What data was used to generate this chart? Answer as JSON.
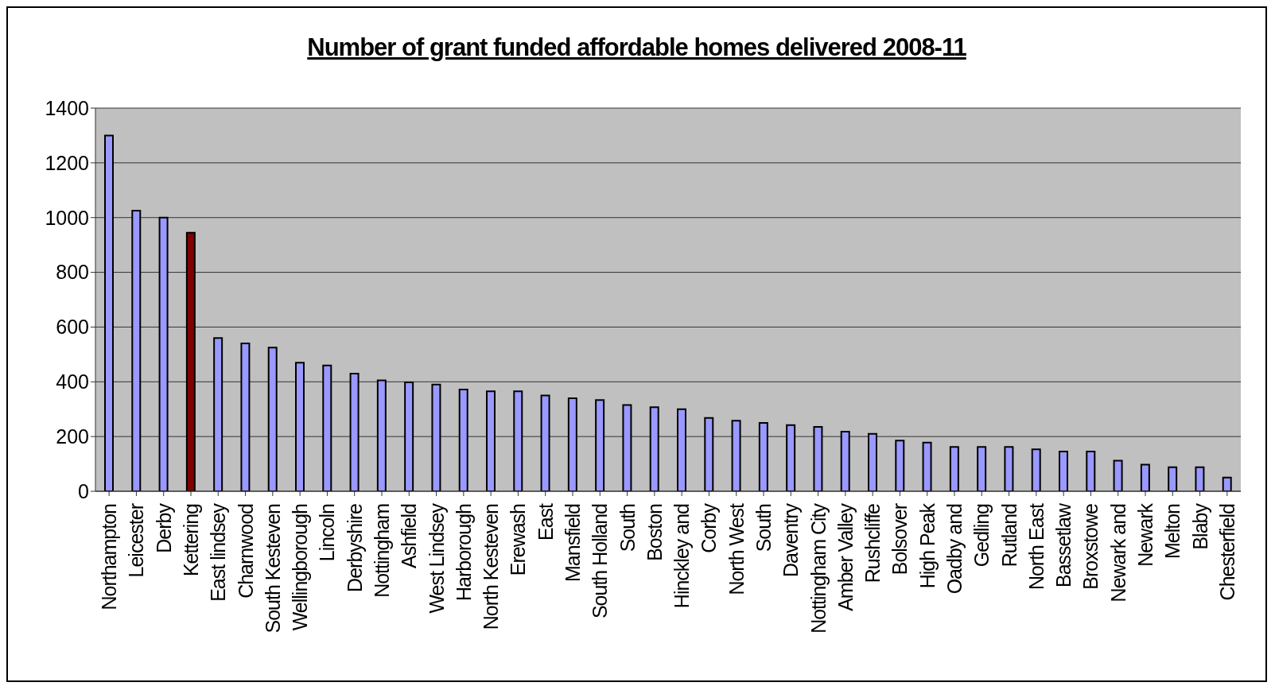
{
  "chart_data": {
    "type": "bar",
    "title": "Number of grant funded affordable homes delivered 2008-11",
    "categories": [
      "Northampton",
      "Leicester",
      "Derby",
      "Kettering",
      "East lindsey",
      "Charnwood",
      "South Kesteven",
      "Wellingborough",
      "Lincoln",
      "Derbyshire",
      "Nottingham",
      "Ashfield",
      "West Lindsey",
      "Harborough",
      "North Kesteven",
      "Erewash",
      "East",
      "Mansfield",
      "South Holland",
      "South",
      "Boston",
      "Hinckley and",
      "Corby",
      "North West",
      "South",
      "Daventry",
      "Nottingham City",
      "Amber Valley",
      "Rushcliffe",
      "Bolsover",
      "High Peak",
      "Oadby and",
      "Gedling",
      "Rutland",
      "North East",
      "Bassetlaw",
      "Broxstowe",
      "Newark and",
      "Newark",
      "Melton",
      "Blaby",
      "Chesterfield"
    ],
    "values": [
      1300,
      1025,
      1000,
      945,
      560,
      540,
      525,
      470,
      460,
      430,
      405,
      398,
      390,
      372,
      365,
      365,
      350,
      340,
      333,
      315,
      307,
      300,
      268,
      258,
      250,
      242,
      235,
      218,
      210,
      185,
      178,
      162,
      162,
      162,
      153,
      145,
      145,
      112,
      97,
      88,
      88,
      50
    ],
    "colors": [
      "#9999ff",
      "#9999ff",
      "#9999ff",
      "#800000",
      "#9999ff",
      "#9999ff",
      "#9999ff",
      "#9999ff",
      "#9999ff",
      "#9999ff",
      "#9999ff",
      "#9999ff",
      "#9999ff",
      "#9999ff",
      "#9999ff",
      "#9999ff",
      "#9999ff",
      "#9999ff",
      "#9999ff",
      "#9999ff",
      "#9999ff",
      "#9999ff",
      "#9999ff",
      "#9999ff",
      "#9999ff",
      "#9999ff",
      "#9999ff",
      "#9999ff",
      "#9999ff",
      "#9999ff",
      "#9999ff",
      "#9999ff",
      "#9999ff",
      "#9999ff",
      "#9999ff",
      "#9999ff",
      "#9999ff",
      "#9999ff",
      "#9999ff",
      "#9999ff",
      "#9999ff",
      "#9999ff"
    ],
    "ylim": [
      0,
      1400
    ],
    "yticks": [
      0,
      200,
      400,
      600,
      800,
      1000,
      1200,
      1400
    ],
    "grid": "y"
  }
}
